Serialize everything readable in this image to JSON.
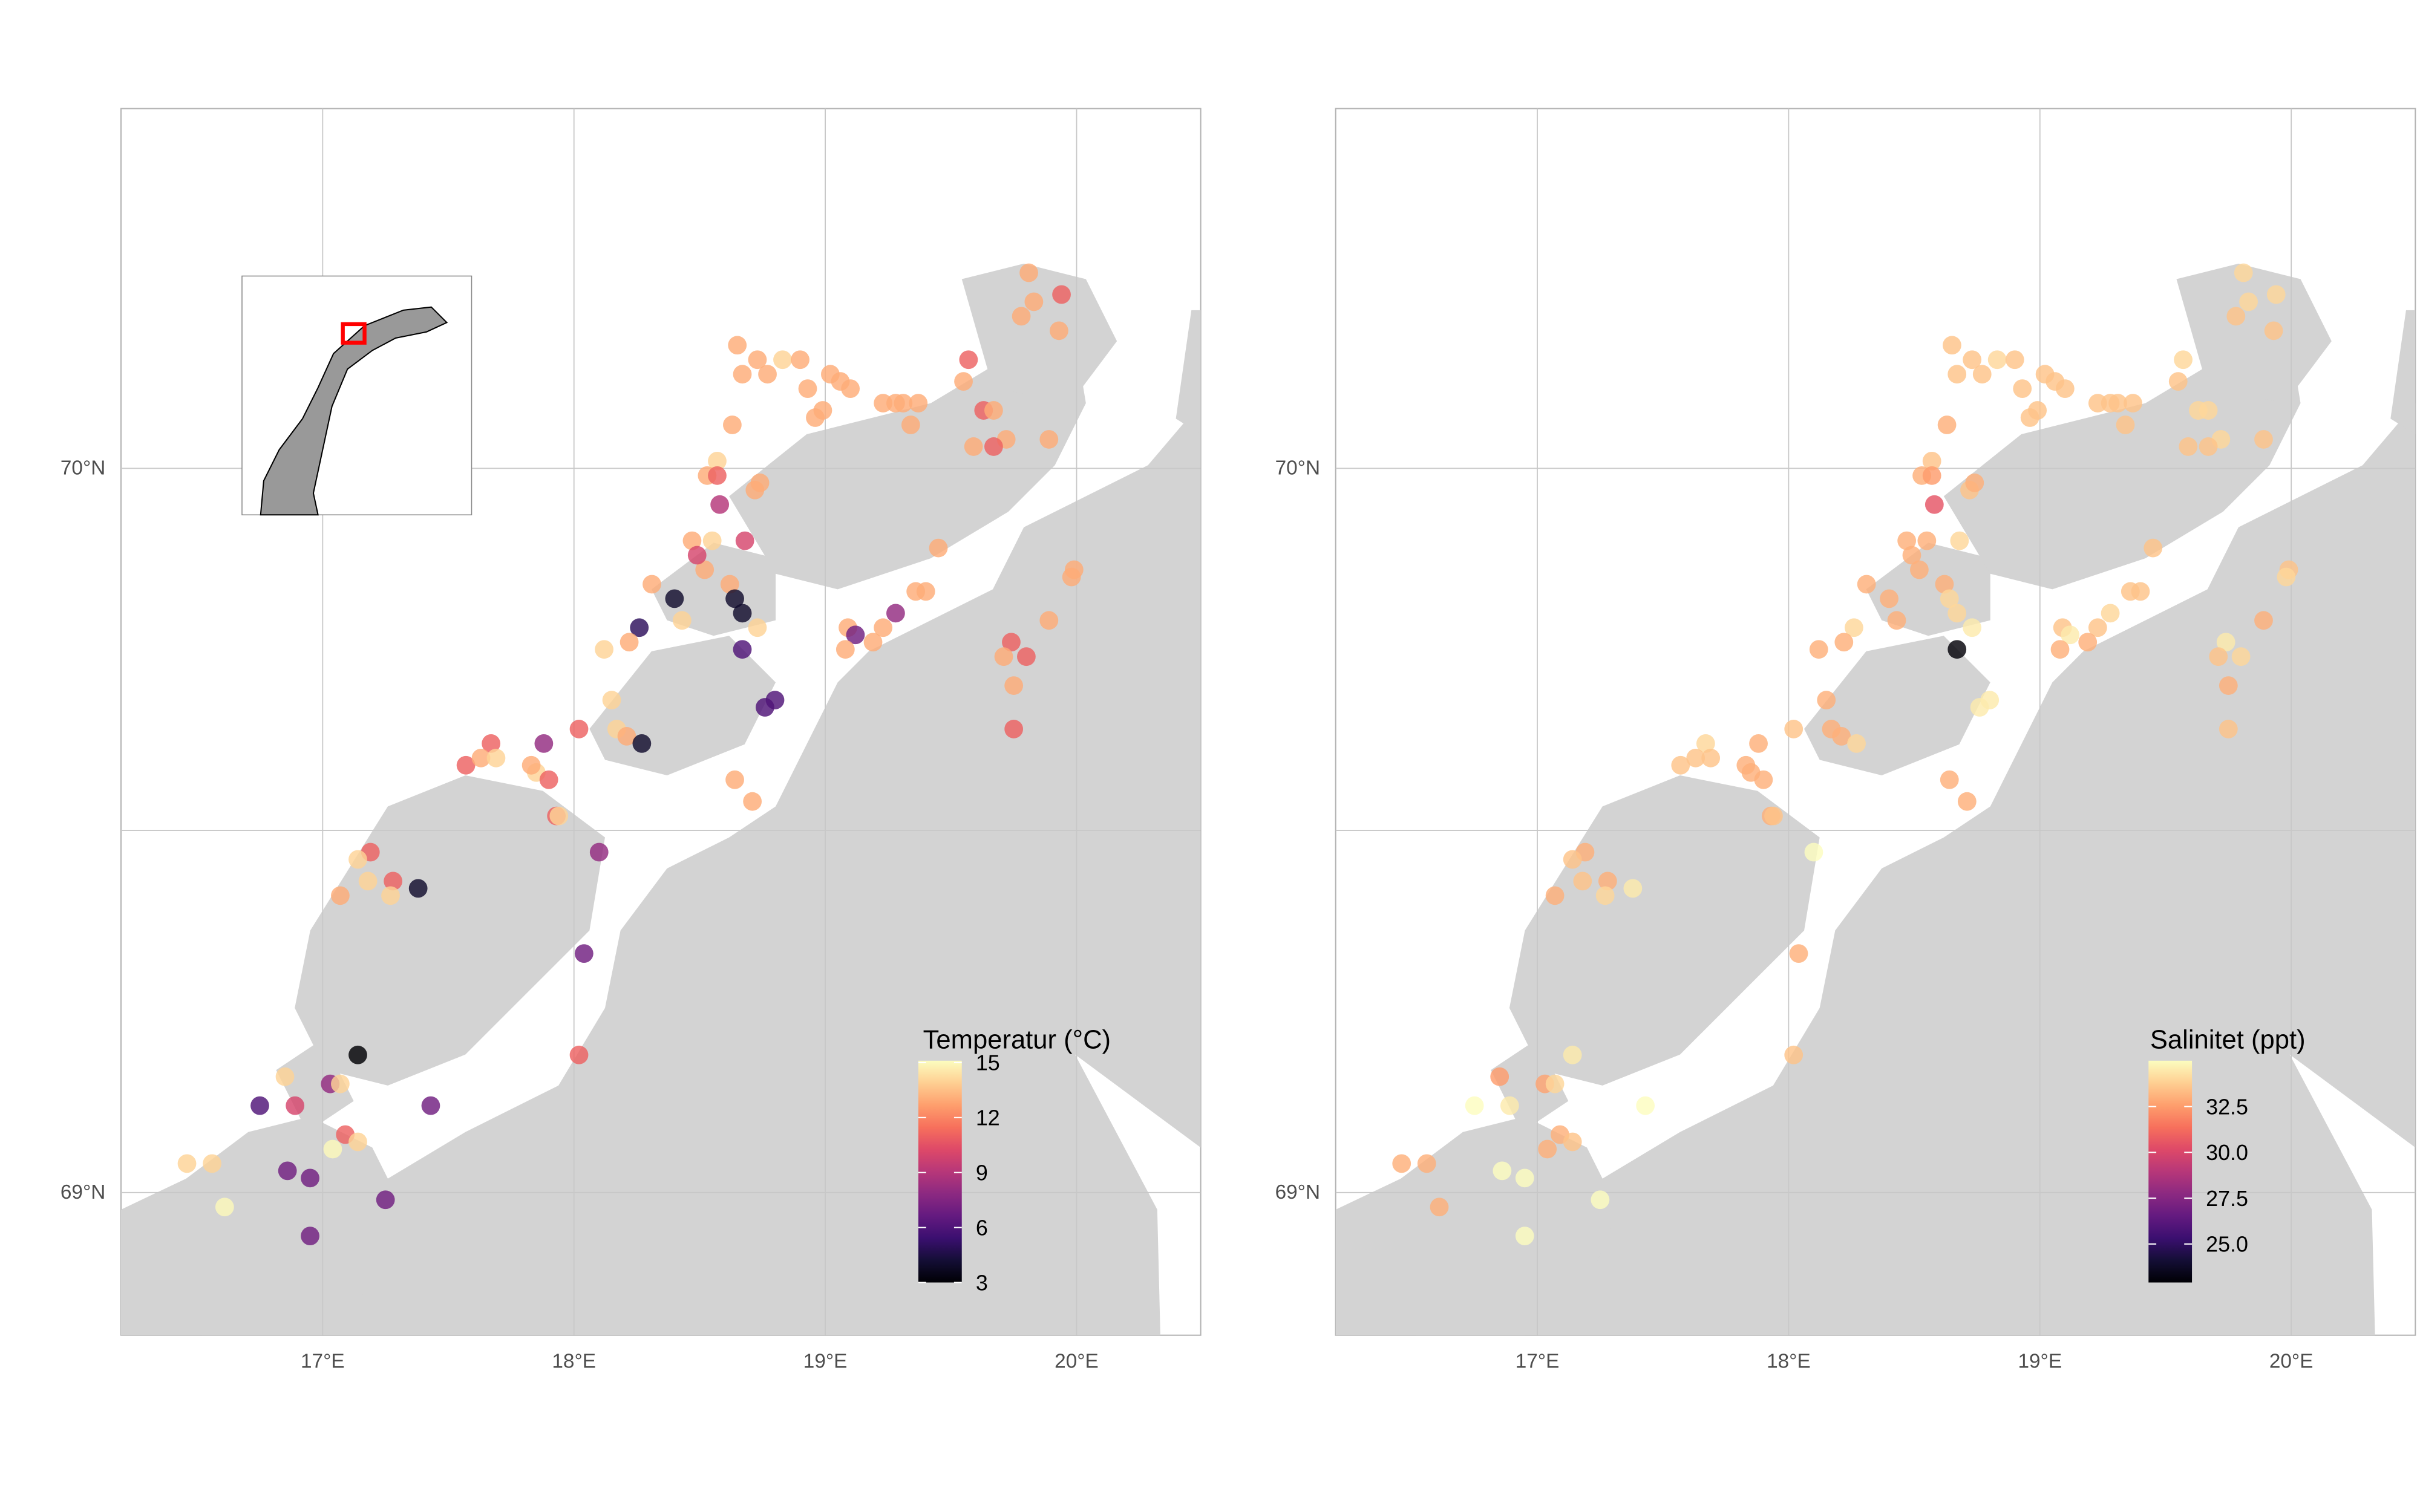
{
  "chart_data": [
    {
      "type": "scatter",
      "panel": "left",
      "variable": "temperature",
      "legend_title": "Temperatur (°C)",
      "legend_ticks": [
        15,
        12,
        9,
        6,
        3
      ],
      "color_range": [
        3,
        15.1
      ],
      "colormap": "magma",
      "legend_placement": "bottom-right inside",
      "x_ticks": [
        "17°E",
        "18°E",
        "19°E",
        "20°E"
      ],
      "y_ticks": [
        "70°N",
        "69°N"
      ],
      "xlim": [
        16.2,
        20.5
      ],
      "ylim": [
        68.8,
        70.5
      ],
      "grid": true,
      "inset_map": true
    },
    {
      "type": "scatter",
      "panel": "right",
      "variable": "salinity",
      "legend_title": "Salinitet (ppt)",
      "legend_ticks": [
        32.5,
        30.0,
        27.5,
        25.0
      ],
      "color_range": [
        22.9,
        35.0
      ],
      "colormap": "magma",
      "legend_placement": "bottom-right inside",
      "x_ticks": [
        "17°E",
        "18°E",
        "19°E",
        "20°E"
      ],
      "y_ticks": [
        "70°N",
        "69°N"
      ],
      "xlim": [
        16.2,
        20.5
      ],
      "ylim": [
        68.8,
        70.5
      ],
      "grid": true
    }
  ],
  "stations": {
    "columns": [
      "lon",
      "lat",
      "temperature",
      "salinity"
    ],
    "rows": [
      [
        18.65,
        70.17,
        13,
        33.5
      ],
      [
        18.73,
        70.15,
        13,
        33.5
      ],
      [
        18.67,
        70.13,
        13,
        33.5
      ],
      [
        18.77,
        70.13,
        13,
        33.5
      ],
      [
        18.83,
        70.15,
        14,
        34
      ],
      [
        18.9,
        70.15,
        13,
        33.5
      ],
      [
        18.93,
        70.11,
        13,
        33.5
      ],
      [
        19.02,
        70.13,
        13,
        33.5
      ],
      [
        19.06,
        70.12,
        13,
        33.5
      ],
      [
        19.1,
        70.11,
        13,
        33.5
      ],
      [
        18.99,
        70.08,
        13,
        33.5
      ],
      [
        18.96,
        70.07,
        13,
        33.5
      ],
      [
        19.23,
        70.09,
        13,
        33.5
      ],
      [
        19.28,
        70.09,
        13,
        33.5
      ],
      [
        19.31,
        70.09,
        13,
        33.5
      ],
      [
        19.37,
        70.09,
        13,
        33.5
      ],
      [
        19.34,
        70.06,
        13,
        33.5
      ],
      [
        19.57,
        70.15,
        11,
        34
      ],
      [
        19.55,
        70.12,
        13,
        33.5
      ],
      [
        19.63,
        70.08,
        11,
        34
      ],
      [
        19.67,
        70.08,
        13,
        34
      ],
      [
        19.81,
        70.27,
        13,
        34
      ],
      [
        19.83,
        70.23,
        13,
        34
      ],
      [
        19.94,
        70.24,
        11,
        34
      ],
      [
        19.78,
        70.21,
        13,
        33.5
      ],
      [
        19.93,
        70.19,
        13,
        33.5
      ],
      [
        19.89,
        70.04,
        13,
        33.5
      ],
      [
        19.72,
        70.04,
        13,
        34
      ],
      [
        19.67,
        70.03,
        11,
        33.5
      ],
      [
        19.59,
        70.03,
        13,
        33.5
      ],
      [
        18.63,
        70.06,
        13,
        33
      ],
      [
        18.57,
        70.01,
        14,
        33.5
      ],
      [
        18.53,
        69.99,
        13,
        33
      ],
      [
        18.57,
        69.99,
        11,
        32.5
      ],
      [
        18.58,
        69.95,
        9,
        30.5
      ],
      [
        18.72,
        69.97,
        13,
        33.5
      ],
      [
        18.74,
        69.98,
        13,
        33
      ],
      [
        18.68,
        69.9,
        10,
        34
      ],
      [
        18.55,
        69.9,
        14,
        33
      ],
      [
        18.47,
        69.9,
        13,
        33
      ],
      [
        18.52,
        69.86,
        13,
        33
      ],
      [
        18.62,
        69.84,
        13,
        33
      ],
      [
        18.49,
        69.88,
        10,
        33
      ],
      [
        18.31,
        69.84,
        13,
        33
      ],
      [
        18.4,
        69.82,
        4,
        33
      ],
      [
        18.43,
        69.79,
        14,
        33
      ],
      [
        18.26,
        69.78,
        5,
        34
      ],
      [
        18.22,
        69.76,
        13,
        33
      ],
      [
        18.12,
        69.75,
        14,
        33
      ],
      [
        18.64,
        69.82,
        4,
        34
      ],
      [
        18.67,
        69.8,
        4,
        34
      ],
      [
        18.73,
        69.78,
        14,
        34.5
      ],
      [
        18.67,
        69.75,
        6,
        23
      ],
      [
        19.45,
        69.89,
        13,
        33.5
      ],
      [
        19.28,
        69.8,
        8,
        34
      ],
      [
        19.4,
        69.83,
        13,
        33.5
      ],
      [
        19.36,
        69.83,
        13,
        33.5
      ],
      [
        19.99,
        69.86,
        13,
        33.5
      ],
      [
        19.98,
        69.85,
        13,
        34
      ],
      [
        19.89,
        69.79,
        13,
        33
      ],
      [
        19.09,
        69.78,
        13,
        33.5
      ],
      [
        19.12,
        69.77,
        7,
        34.5
      ],
      [
        19.23,
        69.78,
        13,
        33.5
      ],
      [
        19.19,
        69.76,
        13,
        33
      ],
      [
        19.08,
        69.75,
        13,
        33
      ],
      [
        19.74,
        69.76,
        11,
        34.5
      ],
      [
        19.8,
        69.74,
        11,
        34
      ],
      [
        19.71,
        69.74,
        13,
        33.5
      ],
      [
        19.75,
        69.7,
        13,
        33
      ],
      [
        19.75,
        69.64,
        11,
        33.5
      ],
      [
        18.8,
        69.68,
        6,
        34.5
      ],
      [
        18.76,
        69.67,
        6,
        34.5
      ],
      [
        18.02,
        69.64,
        11,
        33.5
      ],
      [
        18.15,
        69.68,
        14,
        33
      ],
      [
        18.17,
        69.64,
        14,
        33
      ],
      [
        18.21,
        69.63,
        13,
        33
      ],
      [
        18.27,
        69.62,
        4,
        34
      ],
      [
        17.67,
        69.62,
        11,
        34
      ],
      [
        17.57,
        69.59,
        11,
        33.5
      ],
      [
        17.63,
        69.6,
        13,
        33.5
      ],
      [
        17.69,
        69.6,
        14,
        33.5
      ],
      [
        17.88,
        69.62,
        8,
        33
      ],
      [
        17.85,
        69.58,
        14,
        33
      ],
      [
        17.83,
        69.59,
        13,
        33
      ],
      [
        17.9,
        69.57,
        11,
        33
      ],
      [
        17.93,
        69.52,
        11,
        33
      ],
      [
        17.94,
        69.52,
        14,
        33.5
      ],
      [
        18.64,
        69.57,
        13,
        33
      ],
      [
        18.71,
        69.54,
        13,
        33
      ],
      [
        18.1,
        69.47,
        8,
        35
      ],
      [
        17.19,
        69.47,
        11,
        33
      ],
      [
        17.14,
        69.46,
        14,
        33.5
      ],
      [
        17.18,
        69.43,
        14,
        33.5
      ],
      [
        17.07,
        69.41,
        13,
        33
      ],
      [
        17.28,
        69.43,
        11,
        33
      ],
      [
        17.27,
        69.41,
        14,
        34
      ],
      [
        17.38,
        69.42,
        4,
        34.5
      ],
      [
        18.04,
        69.33,
        7,
        33
      ],
      [
        18.02,
        69.19,
        11,
        33.5
      ],
      [
        17.14,
        69.19,
        3,
        34.5
      ],
      [
        16.85,
        69.16,
        14,
        32.5
      ],
      [
        17.03,
        69.15,
        8,
        32.7
      ],
      [
        17.07,
        69.15,
        14,
        34
      ],
      [
        16.75,
        69.12,
        6,
        35
      ],
      [
        16.89,
        69.12,
        10,
        34.5
      ],
      [
        17.43,
        69.12,
        7,
        35
      ],
      [
        17.09,
        69.08,
        11,
        33
      ],
      [
        17.14,
        69.07,
        14,
        33.5
      ],
      [
        17.04,
        69.06,
        15,
        33
      ],
      [
        16.46,
        69.04,
        14,
        33
      ],
      [
        16.56,
        69.04,
        14,
        33
      ],
      [
        16.86,
        69.03,
        7,
        35
      ],
      [
        16.95,
        69.02,
        7,
        35
      ],
      [
        17.25,
        68.99,
        7,
        35
      ],
      [
        16.61,
        68.98,
        15,
        33
      ],
      [
        16.95,
        68.94,
        7,
        35
      ]
    ]
  },
  "colors": {
    "land": "#d3d3d3",
    "sea": "#ffffff",
    "grid": "#c8c8c8",
    "inset_land": "#999999",
    "inset_highlight": "#ff0000",
    "magma": [
      "#000004",
      "#140e36",
      "#3b0f70",
      "#641a80",
      "#8c2981",
      "#b73779",
      "#de4968",
      "#f7705c",
      "#fe9f6d",
      "#fecf92",
      "#fcfdbf"
    ]
  }
}
